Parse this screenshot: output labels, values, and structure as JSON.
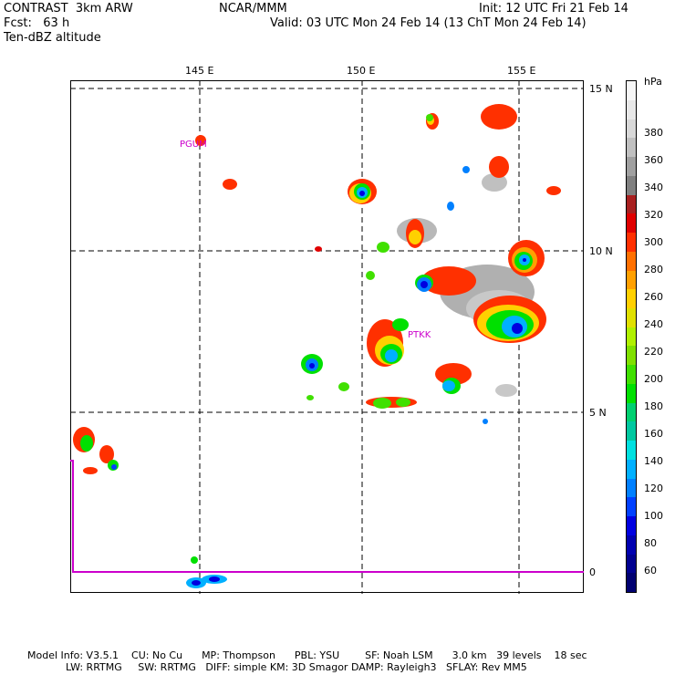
{
  "header": {
    "left_line1": "CONTRAST  3km ARW",
    "left_line2": "Fcst:   63 h",
    "left_line3": "Ten-dBZ altitude",
    "center_line1": "NCAR/MMM",
    "right_line1": "Init: 12 UTC Fri 21 Feb 14",
    "right_line2": "Valid: 03 UTC Mon 24 Feb 14 (13 ChT Mon 24 Feb 14)"
  },
  "map": {
    "lon_labels": [
      "145 E",
      "150 E",
      "155 E"
    ],
    "lat_labels": [
      "15 N",
      "10 N",
      "5 N",
      "0"
    ],
    "stations": [
      "PGUM",
      "PTKK"
    ],
    "colors": {
      "station": "#cc00cc",
      "boundary": "#cc00cc",
      "grid": "#000000"
    }
  },
  "colorbar": {
    "unit": "hPa",
    "labels": [
      "60",
      "80",
      "100",
      "120",
      "140",
      "160",
      "180",
      "200",
      "220",
      "240",
      "260",
      "280",
      "300",
      "320",
      "340",
      "360",
      "380"
    ],
    "colors": [
      "#000070",
      "#000090",
      "#0000b0",
      "#0000e0",
      "#0040ff",
      "#0080ff",
      "#00b0ff",
      "#00e0e0",
      "#00c8a0",
      "#00d070",
      "#00e000",
      "#40e000",
      "#80e000",
      "#b0f000",
      "#e0e000",
      "#ffd000",
      "#ffa000",
      "#ff7000",
      "#ff3000",
      "#e00000",
      "#a82020",
      "#808080",
      "#a0a0a0",
      "#c0c0c0",
      "#d8d8d8",
      "#e8e8e8",
      "#f6f6f6"
    ]
  },
  "footer": {
    "line1": "Model Info: V3.5.1    CU: No Cu      MP: Thompson      PBL: YSU        SF: Noah LSM      3.0 km   39 levels    18 sec",
    "line2": "LW: RRTMG     SW: RRTMG   DIFF: simple KM: 3D Smagor DAMP: Rayleigh3   SFLAY: Rev MM5"
  }
}
